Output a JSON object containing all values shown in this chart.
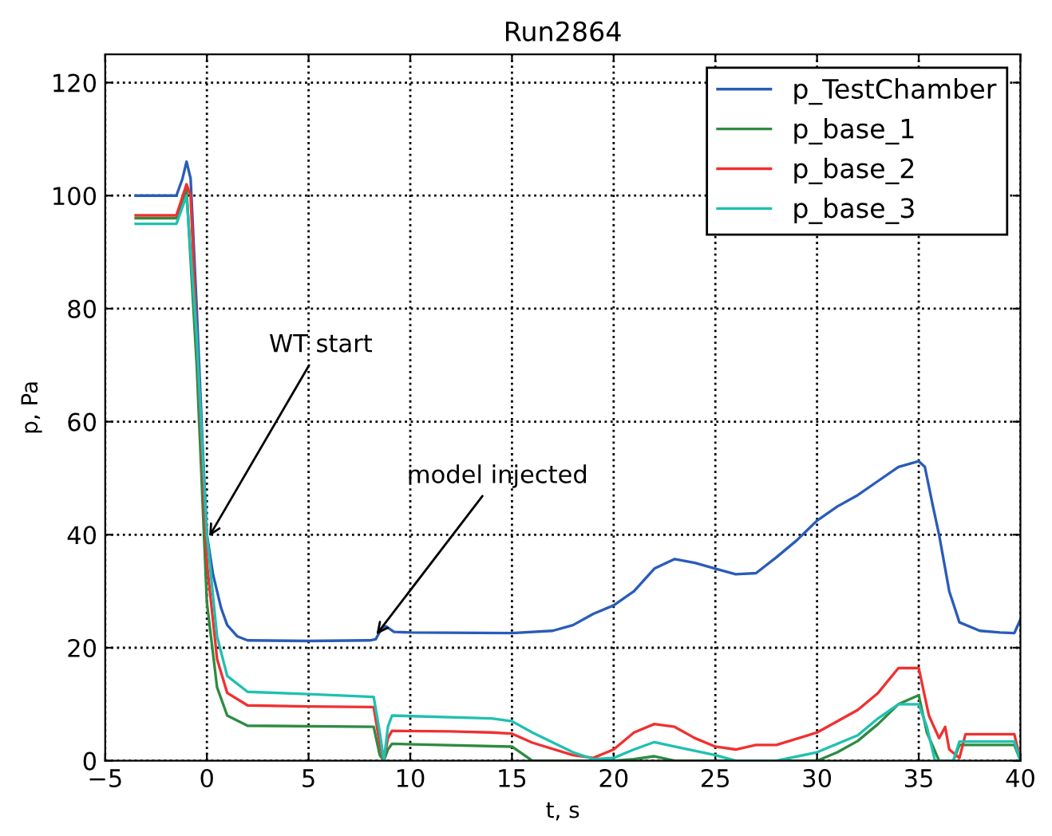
{
  "chart_data": {
    "type": "line",
    "title": "Run2864",
    "xlabel": "t, s",
    "ylabel": "p, Pa",
    "xlim": [
      -5,
      40
    ],
    "ylim": [
      0,
      125
    ],
    "xticks": [
      -5,
      0,
      5,
      10,
      15,
      20,
      25,
      30,
      35,
      40
    ],
    "yticks": [
      0,
      20,
      40,
      60,
      80,
      100,
      120
    ],
    "grid": true,
    "legend": "top right",
    "line_style": "solid",
    "marker": "none",
    "annotations": [
      {
        "text": "WT start",
        "x": 0,
        "y": 39
      },
      {
        "text": "model injected",
        "x": 8.2,
        "y": 21.7
      }
    ],
    "series": [
      {
        "name": "p_TestChamber",
        "color": "#2a5cb8",
        "x": [
          -3.5,
          -1.5,
          -1.2,
          -1,
          -0.8,
          -0.5,
          -0.2,
          0,
          0.3,
          0.7,
          1,
          1.5,
          2,
          5,
          8,
          8.3,
          8.6,
          8.8,
          9.2,
          10,
          15,
          17,
          18,
          19,
          20,
          21,
          22,
          23,
          24,
          25,
          26,
          27,
          28,
          29,
          30,
          31,
          32,
          33,
          34,
          35,
          35.3,
          35.7,
          36,
          36.5,
          37,
          38,
          39,
          39.7,
          40
        ],
        "values": [
          100,
          100,
          103,
          106,
          103,
          80,
          55,
          40,
          33,
          27,
          24,
          22,
          21.3,
          21.2,
          21.3,
          21.5,
          23.5,
          23.8,
          22.8,
          22.7,
          22.6,
          23,
          24,
          26,
          27.5,
          30,
          34,
          35.7,
          35,
          34,
          33,
          33.2,
          36,
          39,
          42.5,
          45,
          47,
          49.5,
          52,
          53,
          52,
          45,
          40,
          30,
          24.5,
          23,
          22.7,
          22.6,
          25
        ]
      },
      {
        "name": "p_base_1",
        "color": "#2e8b42",
        "x": [
          -3.5,
          -1.5,
          -1,
          -0.5,
          0,
          0.5,
          1,
          2,
          8.2,
          8.5,
          8.7,
          8.9,
          9.1,
          15,
          16,
          20,
          21,
          22,
          23,
          28,
          30,
          31,
          32,
          33,
          34,
          35,
          35.4,
          36,
          36.7,
          37,
          39.7,
          40
        ],
        "values": [
          96,
          96,
          101,
          70,
          28,
          13,
          8,
          6.2,
          6,
          1,
          0,
          2,
          3,
          2.5,
          0,
          0,
          0.3,
          0.8,
          0,
          0,
          0,
          1.5,
          3.5,
          6.5,
          10,
          11.6,
          5,
          0,
          0,
          2.8,
          2.8,
          0
        ]
      },
      {
        "name": "p_base_2",
        "color": "#f03030",
        "x": [
          -3.5,
          -1.5,
          -1,
          -0.8,
          -0.5,
          0,
          0.5,
          1,
          2,
          5,
          8.2,
          8.5,
          8.7,
          8.9,
          9.1,
          12,
          14,
          15,
          16,
          18,
          19,
          20,
          21,
          22,
          23,
          24,
          25,
          26,
          27,
          28,
          30,
          32,
          33,
          34,
          35,
          35.5,
          36,
          36.3,
          36.5,
          37,
          37.3,
          39.7,
          40
        ],
        "values": [
          96.5,
          96.5,
          102,
          100,
          75,
          35,
          18,
          12,
          9.8,
          9.6,
          9.5,
          3,
          0,
          4,
          5.3,
          5.2,
          5,
          4.8,
          3.2,
          1,
          0.5,
          2,
          5,
          6.5,
          6,
          4,
          2.5,
          2,
          2.8,
          2.8,
          5,
          9,
          12,
          16.4,
          16.4,
          8,
          4,
          6,
          2,
          0.5,
          4.7,
          4.7,
          0
        ]
      },
      {
        "name": "p_base_3",
        "color": "#20c0b0",
        "x": [
          -3.5,
          -1.5,
          -1,
          -0.5,
          0,
          0.5,
          1,
          2,
          5,
          8.2,
          8.5,
          8.7,
          8.9,
          9.1,
          14,
          15,
          16,
          18,
          19,
          20,
          21,
          22,
          23,
          25,
          26,
          28,
          30,
          32,
          33,
          34,
          35,
          35.4,
          35.8,
          36.7,
          37,
          39.7,
          40
        ],
        "values": [
          95,
          95,
          100,
          75,
          40,
          22,
          15,
          12.2,
          11.8,
          11.3,
          5,
          0,
          6,
          8,
          7.5,
          7,
          5,
          1.5,
          0.3,
          0.5,
          2,
          3.3,
          2.5,
          1,
          0,
          0,
          1.5,
          4.5,
          7.5,
          10,
          10,
          6,
          0,
          0,
          3.4,
          3.4,
          0
        ]
      }
    ]
  }
}
